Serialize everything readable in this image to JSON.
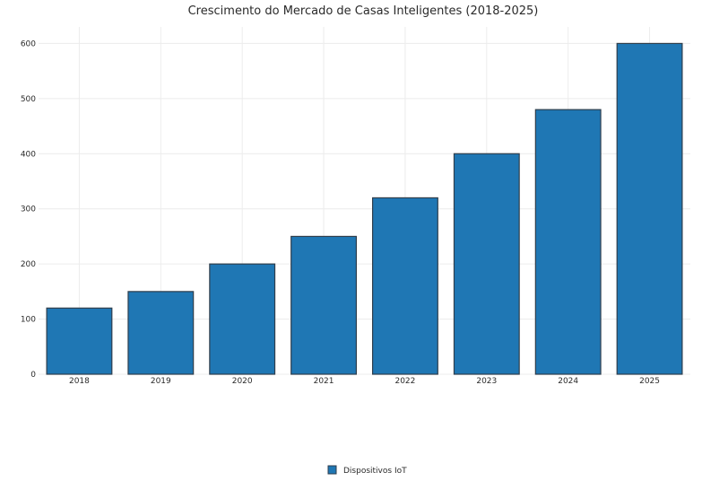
{
  "chart_data": {
    "type": "bar",
    "title": "Crescimento do Mercado de Casas Inteligentes (2018-2025)",
    "xlabel": "",
    "ylabel": "",
    "categories": [
      "2018",
      "2019",
      "2020",
      "2021",
      "2022",
      "2023",
      "2024",
      "2025"
    ],
    "series": [
      {
        "name": "Dispositivos IoT",
        "values": [
          120,
          150,
          200,
          250,
          320,
          400,
          480,
          600
        ]
      }
    ],
    "ylim": [
      0,
      630
    ],
    "yticks": [
      "0",
      "100",
      "200",
      "300",
      "400",
      "500",
      "600"
    ],
    "grid": true,
    "legend_position": "bottom-center",
    "colors": {
      "bar_fill": "#1f77b4",
      "bar_stroke": "#2f3e4c",
      "grid": "#ececec",
      "text": "#2a2a2a"
    }
  }
}
